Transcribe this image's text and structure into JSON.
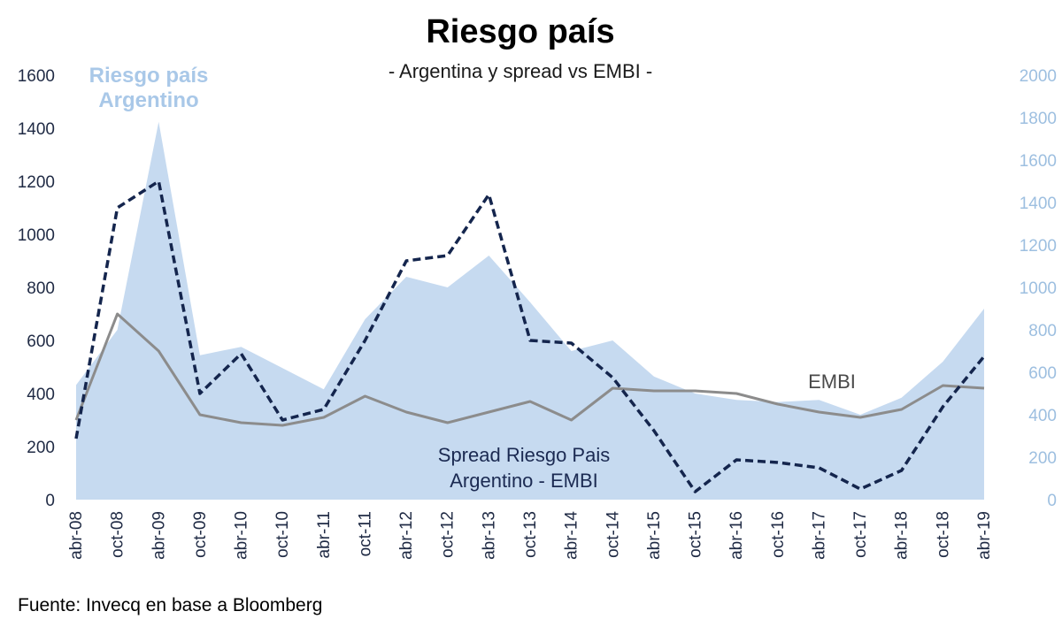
{
  "title": "Riesgo país",
  "subtitle": "- Argentina y spread vs EMBI -",
  "source": "Fuente: Invecq en base a Bloomberg",
  "colors": {
    "area": "#c6daf0",
    "embi": "#8c8c8c",
    "spread": "#14254d",
    "right_axis": "#9dbfe0",
    "left_axis": "#1f2a44"
  },
  "chart_data": {
    "type": "line",
    "title": "Riesgo país",
    "subtitle": "- Argentina y spread vs EMBI -",
    "x": [
      "abr-08",
      "oct-08",
      "abr-09",
      "oct-09",
      "abr-10",
      "oct-10",
      "abr-11",
      "oct-11",
      "abr-12",
      "oct-12",
      "abr-13",
      "oct-13",
      "abr-14",
      "oct-14",
      "abr-15",
      "oct-15",
      "abr-16",
      "oct-16",
      "abr-17",
      "oct-17",
      "abr-18",
      "oct-18",
      "abr-19"
    ],
    "y_left": {
      "ylim": [
        0,
        1600
      ],
      "ticks": [
        "0",
        "200",
        "400",
        "600",
        "800",
        "1000",
        "1200",
        "1400",
        "1600"
      ]
    },
    "y_right": {
      "ylim": [
        0,
        2000
      ],
      "ticks": [
        "0",
        "200",
        "400",
        "600",
        "800",
        "1000",
        "1200",
        "1400",
        "1600",
        "1800",
        "2000"
      ]
    },
    "annotations": {
      "area_label_line1": "Riesgo país",
      "area_label_line2": "Argentino",
      "embi_label": "EMBI",
      "spread_label_line1": "Spread Riesgo Pais",
      "spread_label_line2": "Argentino - EMBI"
    },
    "series": [
      {
        "label": "Riesgo país Argentino",
        "axis": "right",
        "style": "area",
        "values": [
          540,
          800,
          1780,
          680,
          720,
          620,
          520,
          850,
          1050,
          1000,
          1150,
          930,
          700,
          750,
          580,
          500,
          470,
          460,
          470,
          400,
          480,
          650,
          900
        ]
      },
      {
        "label": "EMBI",
        "axis": "left",
        "style": "solid",
        "values": [
          300,
          700,
          560,
          320,
          290,
          280,
          310,
          390,
          330,
          290,
          330,
          370,
          300,
          420,
          410,
          410,
          400,
          360,
          330,
          310,
          340,
          430,
          420
        ]
      },
      {
        "label": "Spread Riesgo Pais Argentino - EMBI",
        "axis": "left",
        "style": "dashed",
        "values": [
          230,
          1100,
          1200,
          400,
          550,
          300,
          340,
          600,
          900,
          920,
          1150,
          600,
          590,
          460,
          260,
          30,
          150,
          140,
          120,
          40,
          110,
          350,
          540
        ]
      }
    ]
  }
}
